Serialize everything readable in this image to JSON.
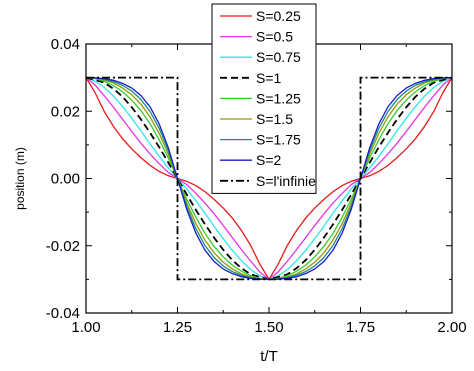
{
  "chart_data": {
    "type": "line",
    "xlabel": "t/T",
    "ylabel": "position (m)",
    "xlim": [
      1.0,
      2.0
    ],
    "ylim": [
      -0.04,
      0.04
    ],
    "x_ticks": [
      "1.00",
      "1.25",
      "1.50",
      "1.75",
      "2.00"
    ],
    "y_ticks": [
      "0.04",
      "0.02",
      "0.00",
      "-0.02",
      "-0.04"
    ],
    "grid": false,
    "legend_position": "top-center",
    "series": [
      {
        "name": "S=0.25",
        "color": "#e41a1c",
        "dash": "solid",
        "x": [
          1.0,
          1.025,
          1.05,
          1.075,
          1.1,
          1.125,
          1.15,
          1.175,
          1.2,
          1.225,
          1.25,
          1.275,
          1.3,
          1.325,
          1.35,
          1.375,
          1.4,
          1.425,
          1.45,
          1.475,
          1.5,
          1.525,
          1.55,
          1.575,
          1.6,
          1.625,
          1.65,
          1.675,
          1.7,
          1.725,
          1.75,
          1.775,
          1.8,
          1.825,
          1.85,
          1.875,
          1.9,
          1.925,
          1.95,
          1.975,
          2.0
        ],
        "y": [
          0.03,
          0.0255,
          0.0199,
          0.0155,
          0.0118,
          0.0088,
          0.0062,
          0.0039,
          0.0021,
          0.0008,
          0.0,
          -0.0008,
          -0.0021,
          -0.0039,
          -0.0062,
          -0.0088,
          -0.0118,
          -0.0155,
          -0.0199,
          -0.0255,
          -0.03,
          -0.0255,
          -0.0199,
          -0.0155,
          -0.0118,
          -0.0088,
          -0.0062,
          -0.0039,
          -0.0021,
          -0.0008,
          0.0,
          0.0008,
          0.0021,
          0.0039,
          0.0062,
          0.0088,
          0.0118,
          0.0155,
          0.0199,
          0.0255,
          0.03
        ]
      },
      {
        "name": "S=0.5",
        "color": "#e637e6",
        "dash": "solid",
        "x": [
          1.0,
          1.025,
          1.05,
          1.075,
          1.1,
          1.125,
          1.15,
          1.175,
          1.2,
          1.225,
          1.25,
          1.275,
          1.3,
          1.325,
          1.35,
          1.375,
          1.4,
          1.425,
          1.45,
          1.475,
          1.5,
          1.525,
          1.55,
          1.575,
          1.6,
          1.625,
          1.65,
          1.675,
          1.7,
          1.725,
          1.75,
          1.775,
          1.8,
          1.825,
          1.85,
          1.875,
          1.9,
          1.925,
          1.95,
          1.975,
          2.0
        ],
        "y": [
          0.03,
          0.0278,
          0.0246,
          0.0212,
          0.0176,
          0.014,
          0.0105,
          0.0073,
          0.0044,
          0.0018,
          0.0,
          -0.0018,
          -0.0044,
          -0.0073,
          -0.0105,
          -0.014,
          -0.0176,
          -0.0212,
          -0.0246,
          -0.0278,
          -0.03,
          -0.0278,
          -0.0246,
          -0.0212,
          -0.0176,
          -0.014,
          -0.0105,
          -0.0073,
          -0.0044,
          -0.0018,
          0.0,
          0.0018,
          0.0044,
          0.0073,
          0.0105,
          0.014,
          0.0176,
          0.0212,
          0.0246,
          0.0278,
          0.03
        ]
      },
      {
        "name": "S=0.75",
        "color": "#33e6e6",
        "dash": "solid",
        "x": [
          1.0,
          1.025,
          1.05,
          1.075,
          1.1,
          1.125,
          1.15,
          1.175,
          1.2,
          1.225,
          1.25,
          1.275,
          1.3,
          1.325,
          1.35,
          1.375,
          1.4,
          1.425,
          1.45,
          1.475,
          1.5,
          1.525,
          1.55,
          1.575,
          1.6,
          1.625,
          1.65,
          1.675,
          1.7,
          1.725,
          1.75,
          1.775,
          1.8,
          1.825,
          1.85,
          1.875,
          1.9,
          1.925,
          1.95,
          1.975,
          2.0
        ],
        "y": [
          0.03,
          0.0289,
          0.0271,
          0.0245,
          0.0214,
          0.0179,
          0.0142,
          0.0103,
          0.0066,
          0.0031,
          0.0,
          -0.0031,
          -0.0066,
          -0.0103,
          -0.0142,
          -0.0179,
          -0.0214,
          -0.0245,
          -0.0271,
          -0.0289,
          -0.03,
          -0.0289,
          -0.0271,
          -0.0245,
          -0.0214,
          -0.0179,
          -0.0142,
          -0.0103,
          -0.0066,
          -0.0031,
          0.0,
          0.0031,
          0.0066,
          0.0103,
          0.0142,
          0.0179,
          0.0214,
          0.0245,
          0.0271,
          0.0289,
          0.03
        ]
      },
      {
        "name": "S=1",
        "color": "#000000",
        "dash": "dash",
        "x": [
          1.0,
          1.025,
          1.05,
          1.075,
          1.1,
          1.125,
          1.15,
          1.175,
          1.2,
          1.225,
          1.25,
          1.275,
          1.3,
          1.325,
          1.35,
          1.375,
          1.4,
          1.425,
          1.45,
          1.475,
          1.5,
          1.525,
          1.55,
          1.575,
          1.6,
          1.625,
          1.65,
          1.675,
          1.7,
          1.725,
          1.75,
          1.775,
          1.8,
          1.825,
          1.85,
          1.875,
          1.9,
          1.925,
          1.95,
          1.975,
          2.0
        ],
        "y": [
          0.03,
          0.0293,
          0.0285,
          0.0267,
          0.0243,
          0.0212,
          0.0176,
          0.0136,
          0.0093,
          0.0047,
          0.0,
          -0.0047,
          -0.0093,
          -0.0136,
          -0.0176,
          -0.0212,
          -0.0243,
          -0.0267,
          -0.0285,
          -0.0293,
          -0.03,
          -0.0293,
          -0.0285,
          -0.0267,
          -0.0243,
          -0.0212,
          -0.0176,
          -0.0136,
          -0.0093,
          -0.0047,
          0.0,
          0.0047,
          0.0093,
          0.0136,
          0.0176,
          0.0212,
          0.0243,
          0.0267,
          0.0285,
          0.0293,
          0.03
        ]
      },
      {
        "name": "S=1.25",
        "color": "#33cc33",
        "dash": "solid",
        "x": [
          1.0,
          1.025,
          1.05,
          1.075,
          1.1,
          1.125,
          1.15,
          1.175,
          1.2,
          1.225,
          1.25,
          1.275,
          1.3,
          1.325,
          1.35,
          1.375,
          1.4,
          1.425,
          1.45,
          1.475,
          1.5,
          1.525,
          1.55,
          1.575,
          1.6,
          1.625,
          1.65,
          1.675,
          1.7,
          1.725,
          1.75,
          1.775,
          1.8,
          1.825,
          1.85,
          1.875,
          1.9,
          1.925,
          1.95,
          1.975,
          2.0
        ],
        "y": [
          0.03,
          0.0297,
          0.0289,
          0.0276,
          0.0258,
          0.0233,
          0.0202,
          0.0163,
          0.0115,
          0.0061,
          0.0,
          -0.0061,
          -0.0115,
          -0.0163,
          -0.0202,
          -0.0233,
          -0.0258,
          -0.0276,
          -0.0289,
          -0.0297,
          -0.03,
          -0.0297,
          -0.0289,
          -0.0276,
          -0.0258,
          -0.0233,
          -0.0202,
          -0.0163,
          -0.0115,
          -0.0061,
          0.0,
          0.0061,
          0.0115,
          0.0163,
          0.0202,
          0.0233,
          0.0258,
          0.0276,
          0.0289,
          0.0297,
          0.03
        ]
      },
      {
        "name": "S=1.5",
        "color": "#999900",
        "dash": "solid",
        "x": [
          1.0,
          1.025,
          1.05,
          1.075,
          1.1,
          1.125,
          1.15,
          1.175,
          1.2,
          1.225,
          1.25,
          1.275,
          1.3,
          1.325,
          1.35,
          1.375,
          1.4,
          1.425,
          1.45,
          1.475,
          1.5,
          1.525,
          1.55,
          1.575,
          1.6,
          1.625,
          1.65,
          1.675,
          1.7,
          1.725,
          1.75,
          1.775,
          1.8,
          1.825,
          1.85,
          1.875,
          1.9,
          1.925,
          1.95,
          1.975,
          2.0
        ],
        "y": [
          0.03,
          0.0298,
          0.0293,
          0.0284,
          0.0269,
          0.0249,
          0.0221,
          0.0183,
          0.0134,
          0.0072,
          0.0,
          -0.0072,
          -0.0134,
          -0.0183,
          -0.0221,
          -0.0249,
          -0.0269,
          -0.0284,
          -0.0293,
          -0.0298,
          -0.03,
          -0.0298,
          -0.0293,
          -0.0284,
          -0.0269,
          -0.0249,
          -0.0221,
          -0.0183,
          -0.0134,
          -0.0072,
          0.0,
          0.0072,
          0.0134,
          0.0183,
          0.0221,
          0.0249,
          0.0269,
          0.0284,
          0.0293,
          0.0298,
          0.03
        ]
      },
      {
        "name": "S=1.75",
        "color": "#1a8c8c",
        "dash": "solid",
        "x": [
          1.0,
          1.025,
          1.05,
          1.075,
          1.1,
          1.125,
          1.15,
          1.175,
          1.2,
          1.225,
          1.25,
          1.275,
          1.3,
          1.325,
          1.35,
          1.375,
          1.4,
          1.425,
          1.45,
          1.475,
          1.5,
          1.525,
          1.55,
          1.575,
          1.6,
          1.625,
          1.65,
          1.675,
          1.7,
          1.725,
          1.75,
          1.775,
          1.8,
          1.825,
          1.85,
          1.875,
          1.9,
          1.925,
          1.95,
          1.975,
          2.0
        ],
        "y": [
          0.03,
          0.0299,
          0.0295,
          0.0288,
          0.0277,
          0.026,
          0.0235,
          0.0199,
          0.0149,
          0.0082,
          0.0,
          -0.0082,
          -0.0149,
          -0.0199,
          -0.0235,
          -0.026,
          -0.0277,
          -0.0288,
          -0.0295,
          -0.0299,
          -0.03,
          -0.0299,
          -0.0295,
          -0.0288,
          -0.0277,
          -0.026,
          -0.0235,
          -0.0199,
          -0.0149,
          -0.0082,
          0.0,
          0.0082,
          0.0149,
          0.0199,
          0.0235,
          0.026,
          0.0277,
          0.0288,
          0.0295,
          0.0299,
          0.03
        ]
      },
      {
        "name": "S=2",
        "color": "#1a1acc",
        "dash": "solid",
        "x": [
          1.0,
          1.025,
          1.05,
          1.075,
          1.1,
          1.125,
          1.15,
          1.175,
          1.2,
          1.225,
          1.25,
          1.275,
          1.3,
          1.325,
          1.35,
          1.375,
          1.4,
          1.425,
          1.45,
          1.475,
          1.5,
          1.525,
          1.55,
          1.575,
          1.6,
          1.625,
          1.65,
          1.675,
          1.7,
          1.725,
          1.75,
          1.775,
          1.8,
          1.825,
          1.85,
          1.875,
          1.9,
          1.925,
          1.95,
          1.975,
          2.0
        ],
        "y": [
          0.03,
          0.0299,
          0.0297,
          0.0292,
          0.0283,
          0.0269,
          0.0247,
          0.0213,
          0.0162,
          0.0091,
          0.0,
          -0.0091,
          -0.0162,
          -0.0213,
          -0.0247,
          -0.0269,
          -0.0283,
          -0.0292,
          -0.0297,
          -0.0299,
          -0.03,
          -0.0299,
          -0.0297,
          -0.0292,
          -0.0283,
          -0.0269,
          -0.0247,
          -0.0213,
          -0.0162,
          -0.0091,
          0.0,
          0.0091,
          0.0162,
          0.0213,
          0.0247,
          0.0269,
          0.0283,
          0.0292,
          0.0297,
          0.0299,
          0.03
        ]
      },
      {
        "name": "S=l'infinie",
        "color": "#000000",
        "dash": "dashdot",
        "x": [
          1.0,
          1.25,
          1.25,
          1.75,
          1.75,
          2.0
        ],
        "y": [
          0.03,
          0.03,
          -0.03,
          -0.03,
          0.03,
          0.03
        ]
      }
    ]
  }
}
